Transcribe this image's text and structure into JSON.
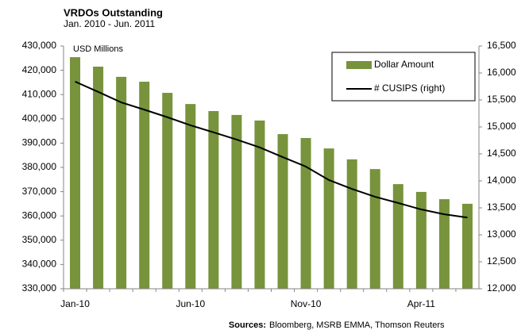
{
  "chart_data": {
    "type": "bar_line",
    "title": "VRDOs Outstanding",
    "subtitle": "Jan. 2010 - Jun. 2011",
    "annotation": "USD Millions",
    "source_label": "Sources:",
    "source": "Bloomberg, MSRB EMMA, Thomson Reuters",
    "categories": [
      "Jan-10",
      null,
      null,
      null,
      null,
      "Jun-10",
      null,
      null,
      null,
      null,
      "Nov-10",
      null,
      null,
      null,
      null,
      "Apr-11",
      null,
      null
    ],
    "series": [
      {
        "name": "Dollar Amount",
        "type": "bar",
        "color": "#77933c",
        "axis": "y",
        "values": [
          425400,
          421500,
          417300,
          415300,
          410700,
          406100,
          403200,
          401600,
          399300,
          393700,
          392100,
          387800,
          383300,
          379300,
          373100,
          369900,
          366900,
          365000
        ]
      },
      {
        "name": "# CUSIPS  (right)",
        "type": "line",
        "color": "#000000",
        "axis": "y2",
        "values": [
          15840,
          15650,
          15455,
          15320,
          15180,
          15030,
          14900,
          14765,
          14620,
          14440,
          14265,
          14015,
          13850,
          13705,
          13590,
          13470,
          13380,
          13320
        ]
      }
    ],
    "ylim": [
      330000,
      430000
    ],
    "yticks": [
      {
        "value": 330000,
        "label": "330,000"
      },
      {
        "value": 340000,
        "label": "340,000"
      },
      {
        "value": 350000,
        "label": "350,000"
      },
      {
        "value": 360000,
        "label": "360,000"
      },
      {
        "value": 370000,
        "label": "370,000"
      },
      {
        "value": 380000,
        "label": "380,000"
      },
      {
        "value": 390000,
        "label": "390,000"
      },
      {
        "value": 400000,
        "label": "400,000"
      },
      {
        "value": 410000,
        "label": "410,000"
      },
      {
        "value": 420000,
        "label": "420,000"
      },
      {
        "value": 430000,
        "label": "430,000"
      }
    ],
    "y2lim": [
      12000,
      16500
    ],
    "y2ticks": [
      {
        "value": 12000,
        "label": "12,000"
      },
      {
        "value": 12500,
        "label": "12,500"
      },
      {
        "value": 13000,
        "label": "13,000"
      },
      {
        "value": 13500,
        "label": "13,500"
      },
      {
        "value": 14000,
        "label": "14,000"
      },
      {
        "value": 14500,
        "label": "14,500"
      },
      {
        "value": 15000,
        "label": "15,000"
      },
      {
        "value": 15500,
        "label": "15,500"
      },
      {
        "value": 16000,
        "label": "16,000"
      },
      {
        "value": 16500,
        "label": "16,500"
      }
    ],
    "legend": "upper right"
  }
}
